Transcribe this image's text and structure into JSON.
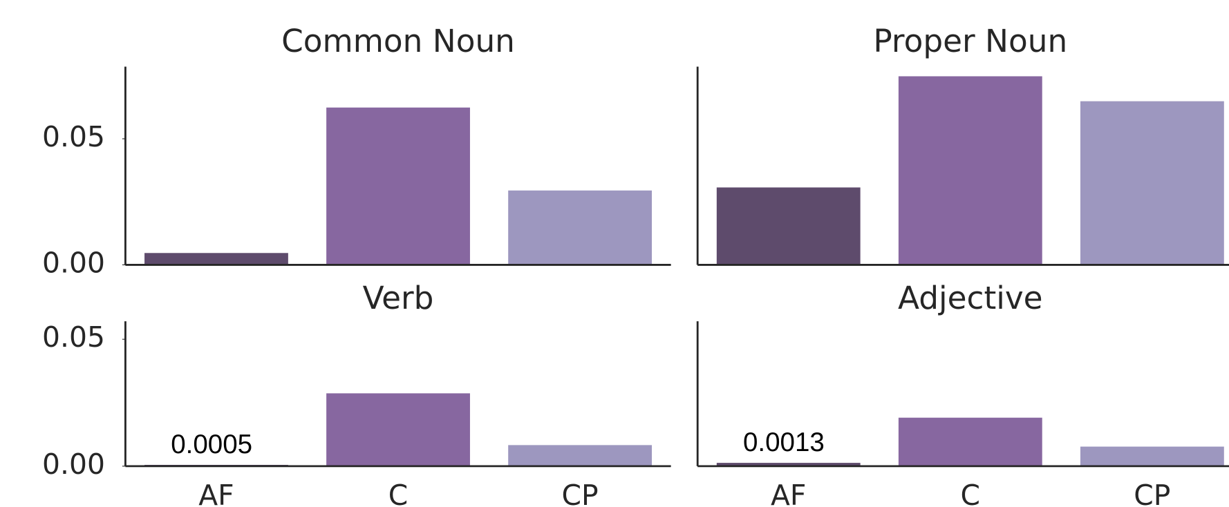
{
  "chart_data": [
    {
      "type": "bar",
      "title": "Common Noun",
      "values": [
        0.0047,
        0.0624,
        0.0295
      ],
      "colors": [
        "#5e4b6c",
        "#8767a0",
        "#9d97bf"
      ],
      "ylim": [
        0,
        0.0786
      ],
      "yticks": [
        {
          "value": 0,
          "label": "0.00"
        },
        {
          "value": 0.05,
          "label": "0.05"
        }
      ]
    },
    {
      "type": "bar",
      "title": "Proper Noun",
      "values": [
        0.0307,
        0.0748,
        0.0649
      ],
      "colors": [
        "#5e4b6c",
        "#8767a0",
        "#9d97bf"
      ],
      "ylim": [
        0,
        0.0786
      ]
    },
    {
      "type": "bar",
      "title": "Verb",
      "categories": [
        "AF",
        "C",
        "CP"
      ],
      "values": [
        0.0005,
        0.0287,
        0.0083
      ],
      "value_labels": [
        "0.0005",
        null,
        null
      ],
      "colors": [
        "#5e4b6c",
        "#8767a0",
        "#9d97bf"
      ],
      "ylim": [
        0,
        0.0571
      ],
      "yticks": [
        {
          "value": 0,
          "label": "0.00"
        },
        {
          "value": 0.05,
          "label": "0.05"
        }
      ]
    },
    {
      "type": "bar",
      "title": "Adjective",
      "categories": [
        "AF",
        "C",
        "CP"
      ],
      "values": [
        0.0013,
        0.0191,
        0.0077
      ],
      "value_labels": [
        "0.0013",
        null,
        null
      ],
      "colors": [
        "#5e4b6c",
        "#8767a0",
        "#9d97bf"
      ],
      "ylim": [
        0,
        0.0571
      ]
    }
  ]
}
